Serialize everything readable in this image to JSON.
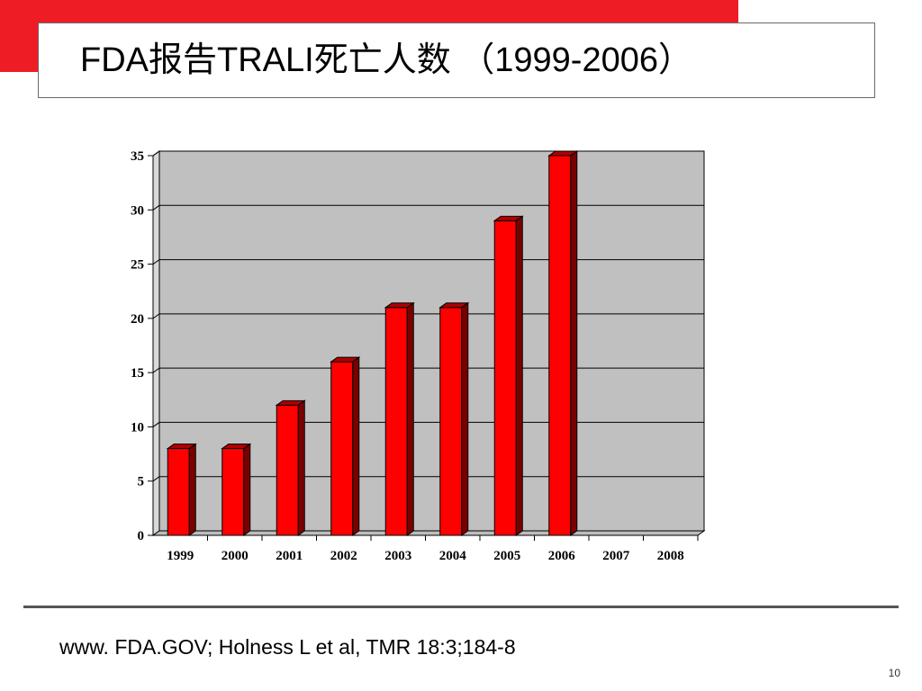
{
  "slide": {
    "title": "FDA报告TRALI死亡人数 （1999-2006）",
    "source": "www. FDA.GOV; Holness L et al, TMR 18:3;184-8",
    "page_number": "10"
  },
  "colors": {
    "accent": "#ee1c25",
    "bar_front": "#ff0000",
    "bar_side": "#7a0000",
    "bar_top": "#b00000",
    "plot_background": "#c0c0c0"
  },
  "chart_data": {
    "type": "bar",
    "title": "",
    "xlabel": "",
    "ylabel": "",
    "categories": [
      "1999",
      "2000",
      "2001",
      "2002",
      "2003",
      "2004",
      "2005",
      "2006",
      "2007",
      "2008"
    ],
    "values": [
      8,
      8,
      12,
      16,
      21,
      21,
      29,
      35,
      null,
      null
    ],
    "ylim": [
      0,
      35
    ],
    "yticks": [
      "0",
      "5",
      "10",
      "15",
      "20",
      "25",
      "30",
      "35"
    ],
    "grid": true,
    "legend": "none",
    "style": "3d-column"
  }
}
